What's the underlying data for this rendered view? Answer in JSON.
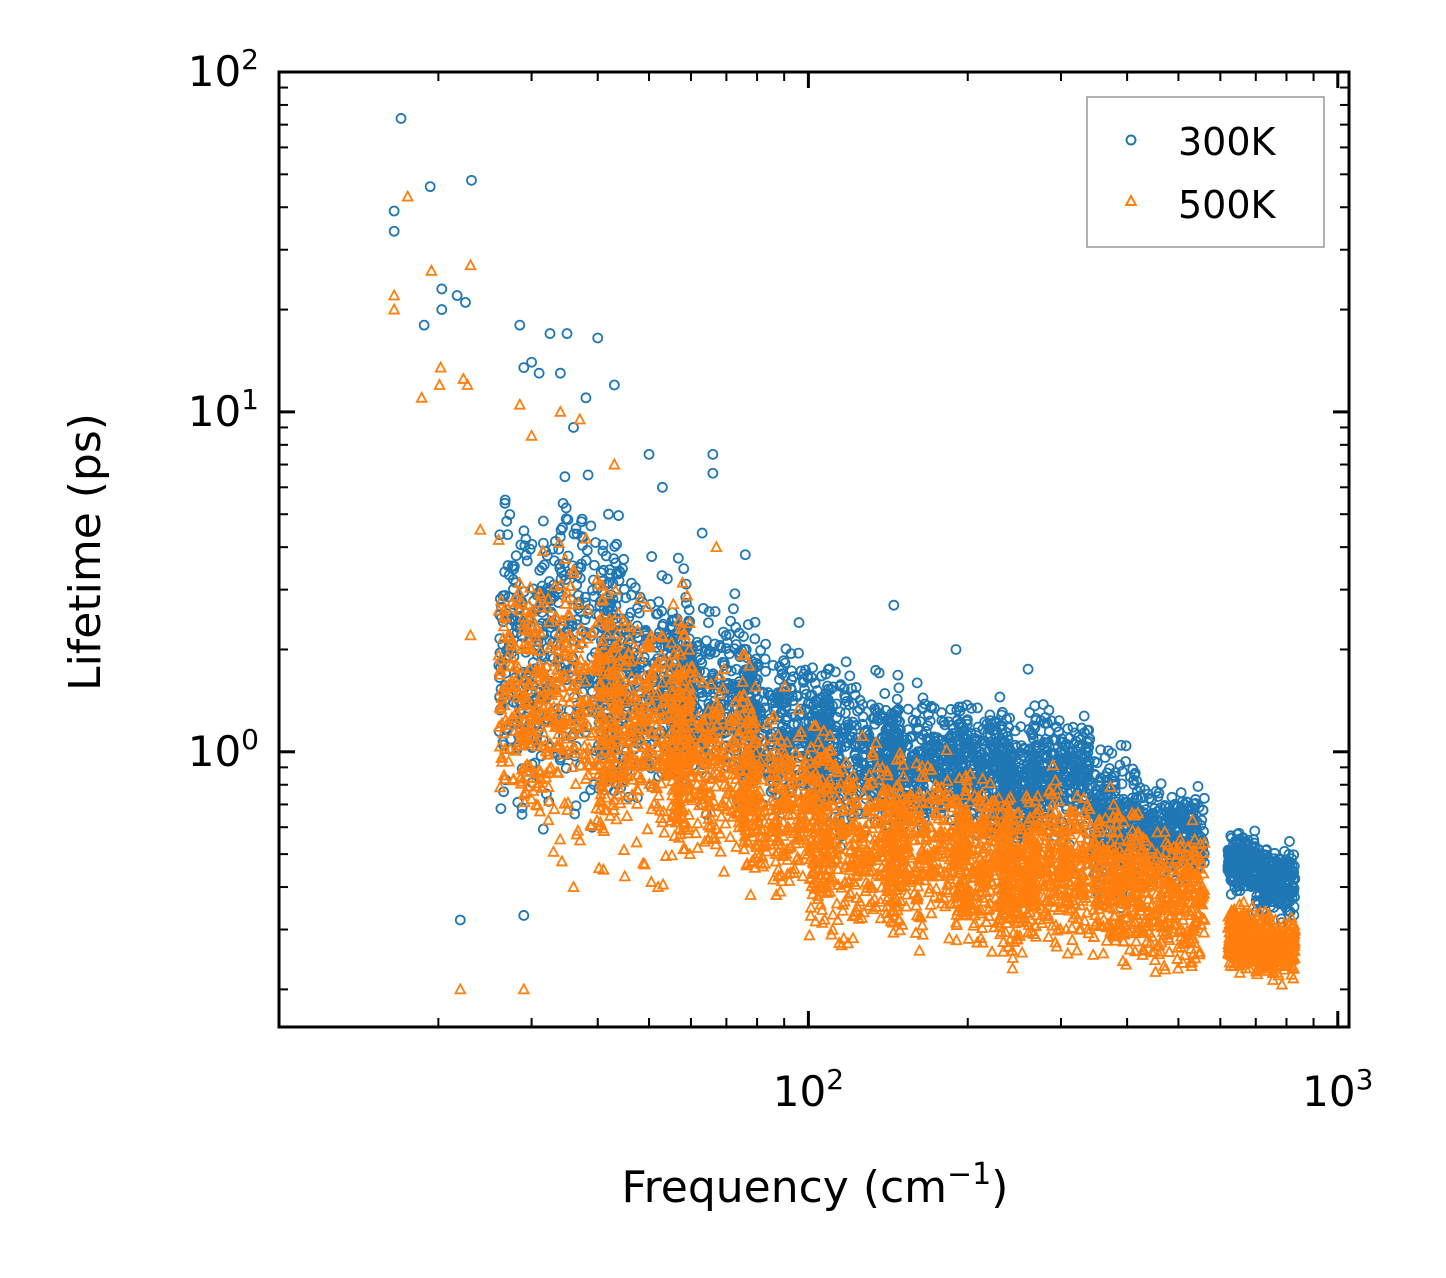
{
  "chart_data": {
    "type": "scatter",
    "title": "",
    "xlabel": "Frequency (cm",
    "xlabel_sup": "−1",
    "xlabel_end": ")",
    "ylabel": "Lifetime (ps)",
    "xscale": "log",
    "yscale": "log",
    "xlim": [
      10,
      1050
    ],
    "ylim": [
      0.155,
      100
    ],
    "x_ticks": [
      {
        "value": 100,
        "base": "10",
        "exp": "2"
      },
      {
        "value": 1000,
        "base": "10",
        "exp": "3"
      }
    ],
    "y_ticks": [
      {
        "value": 1,
        "base": "10",
        "exp": "0"
      },
      {
        "value": 10,
        "base": "10",
        "exp": "1"
      },
      {
        "value": 100,
        "base": "10",
        "exp": "2"
      }
    ],
    "legend": {
      "position": "top-right"
    },
    "series": [
      {
        "name": "300K",
        "marker": "circle",
        "color": "#1f77b4",
        "outliers": [
          [
            17,
            73
          ],
          [
            16.5,
            39
          ],
          [
            16.5,
            34
          ],
          [
            19.3,
            46
          ],
          [
            23.1,
            48
          ],
          [
            20.3,
            23
          ],
          [
            20.3,
            20
          ],
          [
            18.8,
            18
          ],
          [
            21.7,
            22
          ],
          [
            22.5,
            21
          ],
          [
            28.5,
            18
          ],
          [
            32.5,
            17
          ],
          [
            35.0,
            17
          ],
          [
            40.0,
            16.5
          ],
          [
            43.0,
            12
          ],
          [
            30.0,
            14
          ],
          [
            29.0,
            13.5
          ],
          [
            31.0,
            13
          ],
          [
            34.0,
            13
          ],
          [
            38.0,
            11
          ],
          [
            36.0,
            9
          ],
          [
            22.0,
            0.32
          ],
          [
            29.0,
            0.33
          ],
          [
            31.0,
            1.3
          ],
          [
            50.0,
            7.5
          ],
          [
            53.0,
            6
          ],
          [
            66.0,
            7.5
          ],
          [
            66.0,
            6.6
          ],
          [
            63.0,
            4.4
          ],
          [
            76.0,
            3.8
          ],
          [
            96.0,
            2.4
          ],
          [
            145.0,
            2.7
          ],
          [
            190.0,
            2.0
          ],
          [
            260.0,
            1.75
          ]
        ],
        "clusters": [
          {
            "x": [
              26,
              44
            ],
            "y": [
              0.5,
              8
            ]
          },
          {
            "x": [
              40,
              60
            ],
            "y": [
              0.6,
              4.5
            ]
          },
          {
            "x": [
              55,
              80
            ],
            "y": [
              0.6,
              3.2
            ]
          },
          {
            "x": [
              75,
              110
            ],
            "y": [
              0.55,
              2.4
            ]
          },
          {
            "x": [
              100,
              150
            ],
            "y": [
              0.5,
              2.0
            ]
          },
          {
            "x": [
              140,
              200
            ],
            "y": [
              0.5,
              1.7
            ]
          },
          {
            "x": [
              190,
              240
            ],
            "y": [
              0.5,
              1.6
            ]
          },
          {
            "x": [
              230,
              270
            ],
            "y": [
              0.45,
              1.3
            ]
          },
          {
            "x": [
              260,
              340
            ],
            "y": [
              0.5,
              1.55
            ]
          },
          {
            "x": [
              345,
              420
            ],
            "y": [
              0.32,
              1.2
            ]
          },
          {
            "x": [
              420,
              560
            ],
            "y": [
              0.38,
              0.85
            ]
          },
          {
            "x": [
              620,
              700
            ],
            "y": [
              0.36,
              0.62
            ]
          },
          {
            "x": [
              700,
              830
            ],
            "y": [
              0.3,
              0.58
            ]
          }
        ]
      },
      {
        "name": "500K",
        "marker": "triangle",
        "color": "#ff7f0e",
        "outliers": [
          [
            17.5,
            43
          ],
          [
            16.5,
            22
          ],
          [
            16.5,
            20
          ],
          [
            19.4,
            26
          ],
          [
            23.0,
            27
          ],
          [
            18.6,
            11
          ],
          [
            20.2,
            13.5
          ],
          [
            20.1,
            12
          ],
          [
            22.3,
            12.5
          ],
          [
            22.7,
            12
          ],
          [
            28.5,
            10.5
          ],
          [
            30.0,
            8.5
          ],
          [
            34.0,
            10
          ],
          [
            37.0,
            9.5
          ],
          [
            43.0,
            7
          ],
          [
            23.0,
            2.2
          ],
          [
            27.5,
            2.1
          ],
          [
            22.0,
            0.2
          ],
          [
            29.0,
            0.2
          ],
          [
            30.0,
            1.3
          ],
          [
            24.0,
            4.5
          ],
          [
            26.0,
            4.2
          ],
          [
            36.0,
            0.4
          ],
          [
            41.0,
            0.45
          ],
          [
            45.0,
            0.43
          ],
          [
            52.0,
            0.4
          ],
          [
            67.0,
            4.0
          ]
        ],
        "clusters": [
          {
            "x": [
              26,
              44
            ],
            "y": [
              0.4,
              5
            ]
          },
          {
            "x": [
              40,
              60
            ],
            "y": [
              0.38,
              3.6
            ]
          },
          {
            "x": [
              55,
              80
            ],
            "y": [
              0.38,
              2.3
            ]
          },
          {
            "x": [
              75,
              110
            ],
            "y": [
              0.3,
              1.6
            ]
          },
          {
            "x": [
              100,
              150
            ],
            "y": [
              0.23,
              1.3
            ]
          },
          {
            "x": [
              140,
              200
            ],
            "y": [
              0.24,
              1.1
            ]
          },
          {
            "x": [
              190,
              240
            ],
            "y": [
              0.22,
              1.0
            ]
          },
          {
            "x": [
              230,
              270
            ],
            "y": [
              0.22,
              0.85
            ]
          },
          {
            "x": [
              260,
              340
            ],
            "y": [
              0.22,
              1.0
            ]
          },
          {
            "x": [
              345,
              420
            ],
            "y": [
              0.2,
              0.85
            ]
          },
          {
            "x": [
              420,
              560
            ],
            "y": [
              0.2,
              0.7
            ]
          },
          {
            "x": [
              620,
              700
            ],
            "y": [
              0.21,
              0.38
            ]
          },
          {
            "x": [
              700,
              830
            ],
            "y": [
              0.2,
              0.36
            ]
          }
        ]
      }
    ]
  }
}
